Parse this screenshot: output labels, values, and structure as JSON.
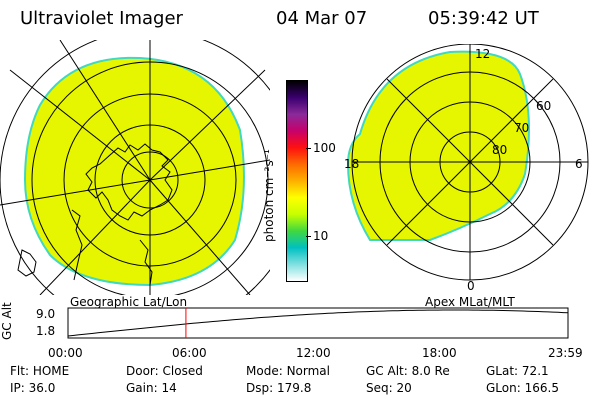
{
  "header": {
    "instrument": "Ultraviolet Imager",
    "date": "04 Mar 07",
    "time": "05:39:42 UT"
  },
  "left_panel": {
    "caption": "Geographic Lat/Lon"
  },
  "right_panel": {
    "caption": "Apex MLat/MLT",
    "mlt_labels": {
      "top": "12",
      "left": "18",
      "right": "6",
      "bottom": "0"
    },
    "lat_labels": [
      "60",
      "70",
      "80"
    ]
  },
  "colorbar": {
    "unit_label": "photon cm⁻²s⁻¹",
    "ticks": [
      "100",
      "10"
    ],
    "colors": [
      "#000000",
      "#3a0070",
      "#8a2a9a",
      "#c8006a",
      "#ff1010",
      "#ff6a00",
      "#ffb000",
      "#ffff00",
      "#c8ff00",
      "#40d840",
      "#00c0c0",
      "#80e0e0",
      "#ffffff"
    ]
  },
  "orbit": {
    "ylabel": "GC Alt",
    "yticks": [
      "9.0",
      "1.8"
    ],
    "xticks": [
      "00:00",
      "06:00",
      "12:00",
      "18:00",
      "23:59"
    ],
    "current_time_hours": 5.66,
    "marker_color": "#ff0000"
  },
  "info": {
    "row1": [
      {
        "key": "Flt:",
        "value": "HOME"
      },
      {
        "key": "Door:",
        "value": "Closed"
      },
      {
        "key": "Mode:",
        "value": "Normal"
      },
      {
        "key": "GC Alt:",
        "value": "8.0 Re"
      },
      {
        "key": "GLat:",
        "value": "72.1"
      }
    ],
    "row2": [
      {
        "key": "IP:",
        "value": "36.0"
      },
      {
        "key": "Gain:",
        "value": "14"
      },
      {
        "key": "Dsp:",
        "value": "179.8"
      },
      {
        "key": "Seq:",
        "value": "20"
      },
      {
        "key": "GLon:",
        "value": "166.5"
      }
    ]
  },
  "colors": {
    "aurora_fill": "#e6f500",
    "aurora_edge": "#40d8c0"
  }
}
